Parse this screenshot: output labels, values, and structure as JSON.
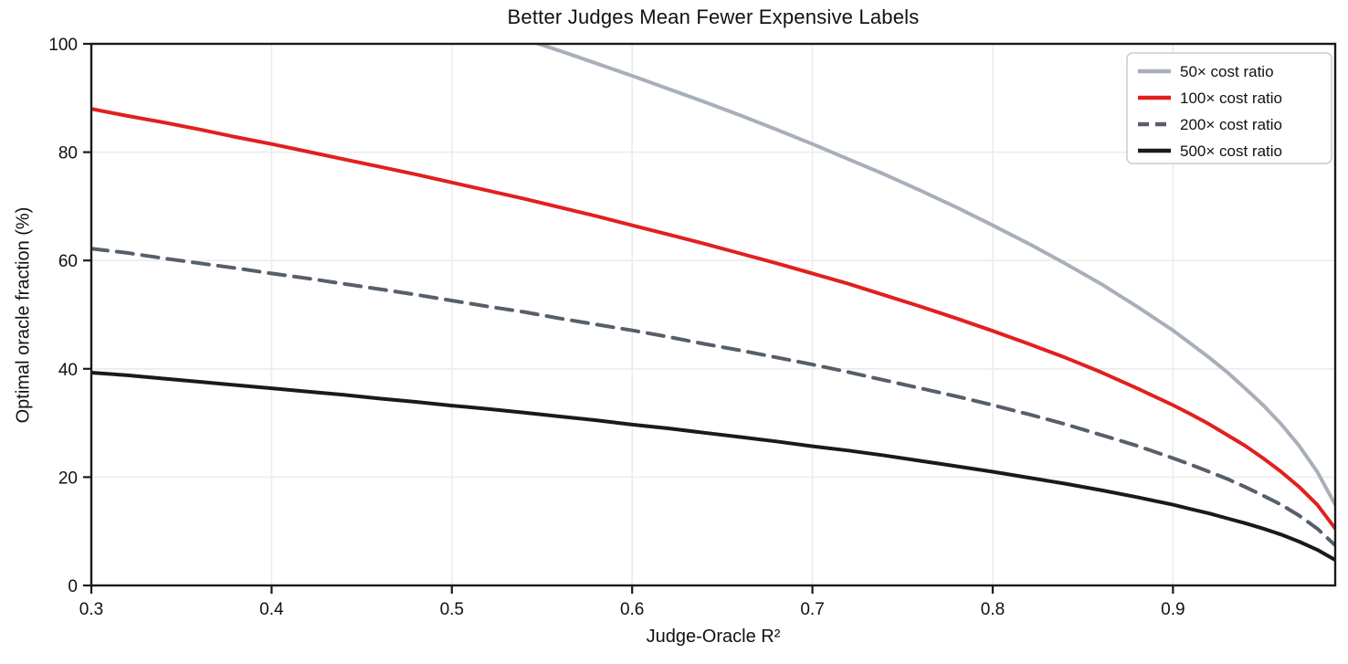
{
  "title": "Better Judges Mean Fewer Expensive Labels",
  "axes": {
    "xlabel": "Judge-Oracle R²",
    "ylabel": "Optimal oracle fraction (%)",
    "x_tick_labels": [
      "0.3",
      "0.4",
      "0.5",
      "0.6",
      "0.7",
      "0.8",
      "0.9"
    ],
    "y_tick_labels": [
      "0",
      "20",
      "40",
      "60",
      "80",
      "100"
    ]
  },
  "colors": {
    "spine": "#1a1a1a",
    "grid": "#ececec",
    "legend_border": "#cccccc",
    "background": "#ffffff",
    "series_50x": "#a8afba",
    "series_100x": "#e1201e",
    "series_200x": "#565f6a",
    "series_500x": "#1a1a1a"
  },
  "chart_data": {
    "type": "line",
    "title": "Better Judges Mean Fewer Expensive Labels",
    "xlabel": "Judge-Oracle R²",
    "ylabel": "Optimal oracle fraction (%)",
    "xlim": [
      0.3,
      0.99
    ],
    "ylim": [
      0,
      100
    ],
    "x_ticks": [
      0.3,
      0.4,
      0.5,
      0.6,
      0.7,
      0.8,
      0.9
    ],
    "y_ticks": [
      0,
      20,
      40,
      60,
      80,
      100
    ],
    "grid": true,
    "legend_position": "upper right",
    "series": [
      {
        "name": "50× cost ratio",
        "color": "#a8afba",
        "style": "solid",
        "x": [
          0.548,
          0.56,
          0.58,
          0.6,
          0.62,
          0.64,
          0.66,
          0.68,
          0.7,
          0.72,
          0.74,
          0.76,
          0.78,
          0.8,
          0.82,
          0.84,
          0.86,
          0.88,
          0.9,
          0.91,
          0.92,
          0.93,
          0.94,
          0.95,
          0.96,
          0.97,
          0.98,
          0.99
        ],
        "y": [
          100,
          98.7,
          96.4,
          94.1,
          91.7,
          89.3,
          86.8,
          84.2,
          81.5,
          78.7,
          75.9,
          72.9,
          69.8,
          66.5,
          63.1,
          59.5,
          55.7,
          51.5,
          47.1,
          44.6,
          42.1,
          39.4,
          36.4,
          33.3,
          29.8,
          25.8,
          21.0,
          14.9
        ]
      },
      {
        "name": "100× cost ratio",
        "color": "#e1201e",
        "style": "solid",
        "x": [
          0.3,
          0.32,
          0.34,
          0.36,
          0.38,
          0.4,
          0.42,
          0.44,
          0.46,
          0.48,
          0.5,
          0.52,
          0.54,
          0.56,
          0.58,
          0.6,
          0.62,
          0.64,
          0.66,
          0.68,
          0.7,
          0.72,
          0.74,
          0.76,
          0.78,
          0.8,
          0.82,
          0.84,
          0.86,
          0.88,
          0.9,
          0.91,
          0.92,
          0.93,
          0.94,
          0.95,
          0.96,
          0.97,
          0.98,
          0.99
        ],
        "y": [
          88.0,
          86.7,
          85.5,
          84.2,
          82.8,
          81.5,
          80.1,
          78.7,
          77.3,
          75.9,
          74.4,
          72.9,
          71.4,
          69.8,
          68.2,
          66.5,
          64.8,
          63.1,
          61.3,
          59.5,
          57.6,
          55.7,
          53.6,
          51.5,
          49.3,
          47.0,
          44.6,
          42.1,
          39.4,
          36.4,
          33.3,
          31.6,
          29.8,
          27.8,
          25.8,
          23.5,
          21.0,
          18.2,
          14.9,
          10.5
        ]
      },
      {
        "name": "200× cost ratio",
        "color": "#565f6a",
        "style": "dashed",
        "x": [
          0.3,
          0.32,
          0.34,
          0.36,
          0.38,
          0.4,
          0.42,
          0.44,
          0.46,
          0.48,
          0.5,
          0.52,
          0.54,
          0.56,
          0.58,
          0.6,
          0.62,
          0.64,
          0.66,
          0.68,
          0.7,
          0.72,
          0.74,
          0.76,
          0.78,
          0.8,
          0.82,
          0.84,
          0.86,
          0.88,
          0.9,
          0.91,
          0.92,
          0.93,
          0.94,
          0.95,
          0.96,
          0.97,
          0.98,
          0.99
        ],
        "y": [
          62.2,
          61.4,
          60.4,
          59.5,
          58.6,
          57.6,
          56.7,
          55.7,
          54.7,
          53.7,
          52.6,
          51.5,
          50.5,
          49.3,
          48.2,
          47.1,
          45.9,
          44.6,
          43.4,
          42.1,
          40.8,
          39.4,
          37.9,
          36.4,
          34.9,
          33.3,
          31.6,
          29.8,
          27.8,
          25.8,
          23.5,
          22.3,
          21.0,
          19.7,
          18.2,
          16.6,
          14.9,
          12.9,
          10.5,
          7.4
        ]
      },
      {
        "name": "500× cost ratio",
        "color": "#1a1a1a",
        "style": "solid",
        "x": [
          0.3,
          0.32,
          0.34,
          0.36,
          0.38,
          0.4,
          0.42,
          0.44,
          0.46,
          0.48,
          0.5,
          0.52,
          0.54,
          0.56,
          0.58,
          0.6,
          0.62,
          0.64,
          0.66,
          0.68,
          0.7,
          0.72,
          0.74,
          0.76,
          0.78,
          0.8,
          0.82,
          0.84,
          0.86,
          0.88,
          0.9,
          0.91,
          0.92,
          0.93,
          0.94,
          0.95,
          0.96,
          0.97,
          0.98,
          0.99
        ],
        "y": [
          39.3,
          38.8,
          38.2,
          37.6,
          37.0,
          36.4,
          35.8,
          35.2,
          34.5,
          33.9,
          33.2,
          32.6,
          31.9,
          31.2,
          30.5,
          29.7,
          29.0,
          28.2,
          27.4,
          26.6,
          25.7,
          24.9,
          24.0,
          23.0,
          22.0,
          21.0,
          19.9,
          18.8,
          17.6,
          16.3,
          14.9,
          14.1,
          13.3,
          12.4,
          11.5,
          10.5,
          9.4,
          8.1,
          6.6,
          4.7
        ]
      }
    ]
  }
}
